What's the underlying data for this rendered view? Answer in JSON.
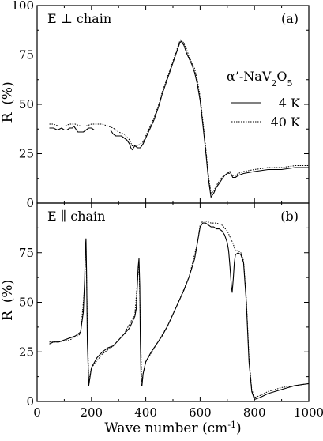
{
  "chart_data": [
    {
      "type": "line",
      "panel_label": "(a)",
      "annotation": "E ⊥ chain",
      "ylabel_prefix": "R",
      "ylabel_unit": "(%)",
      "ylim": [
        0,
        100
      ],
      "yticks": [
        0,
        25,
        50,
        75,
        100
      ],
      "xlim": [
        0,
        1000
      ],
      "legend": {
        "compound_prefix": "α’-NaV",
        "compound_sub1": "2",
        "compound_mid": "O",
        "compound_sub2": "5",
        "entries": [
          "4 K",
          "40 K"
        ],
        "placement": "right"
      },
      "series": [
        {
          "name": "4 K",
          "style": "solid",
          "x": [
            45,
            60,
            75,
            90,
            100,
            110,
            120,
            130,
            135,
            140,
            150,
            160,
            170,
            180,
            190,
            200,
            210,
            220,
            230,
            240,
            250,
            255,
            260,
            270,
            280,
            290,
            300,
            310,
            320,
            330,
            340,
            345,
            350,
            355,
            360,
            370,
            380,
            390,
            400,
            410,
            420,
            430,
            440,
            450,
            460,
            470,
            480,
            490,
            500,
            510,
            520,
            525,
            530,
            540,
            550,
            560,
            570,
            580,
            590,
            600,
            610,
            620,
            630,
            640,
            650,
            660,
            670,
            680,
            690,
            700,
            710,
            720,
            730,
            740,
            760,
            800,
            850,
            900,
            950,
            1000
          ],
          "y": [
            38,
            38,
            37,
            38,
            37,
            37,
            38,
            38,
            39,
            38,
            36,
            36,
            36,
            37,
            38,
            38,
            37,
            37,
            37,
            37,
            37,
            37,
            37,
            37,
            35,
            34,
            34,
            34,
            33,
            32,
            30,
            28,
            27,
            28,
            29,
            28,
            28,
            30,
            33,
            36,
            39,
            42,
            46,
            50,
            55,
            59,
            63,
            67,
            71,
            75,
            79,
            81,
            82,
            80,
            76,
            73,
            70,
            66,
            60,
            52,
            40,
            27,
            13,
            3,
            5,
            8,
            10,
            12,
            14,
            15,
            16,
            13,
            13,
            14,
            15,
            16,
            17,
            17,
            18,
            18
          ]
        },
        {
          "name": "40 K",
          "style": "dotted",
          "x": [
            45,
            60,
            80,
            100,
            120,
            140,
            160,
            180,
            200,
            220,
            240,
            260,
            280,
            300,
            320,
            340,
            350,
            360,
            370,
            380,
            390,
            400,
            410,
            420,
            430,
            440,
            450,
            460,
            470,
            480,
            490,
            500,
            510,
            520,
            525,
            530,
            540,
            550,
            560,
            570,
            580,
            590,
            600,
            610,
            620,
            630,
            640,
            650,
            660,
            670,
            680,
            690,
            700,
            710,
            720,
            730,
            740,
            760,
            800,
            850,
            900,
            950,
            1000
          ],
          "y": [
            40,
            40,
            39,
            39,
            40,
            40,
            39,
            39,
            40,
            40,
            40,
            39,
            38,
            36,
            35,
            32,
            29,
            29,
            29,
            30,
            31,
            34,
            37,
            40,
            43,
            47,
            51,
            56,
            60,
            64,
            68,
            72,
            76,
            80,
            82,
            83,
            81,
            78,
            74,
            71,
            68,
            62,
            54,
            42,
            29,
            15,
            5,
            6,
            9,
            11,
            13,
            14,
            15,
            15,
            14,
            14,
            15,
            16,
            17,
            18,
            18,
            19,
            19
          ]
        }
      ]
    },
    {
      "type": "line",
      "panel_label": "(b)",
      "annotation": "E ∥ chain",
      "ylabel_prefix": "R",
      "ylabel_unit": "(%)",
      "ylim": [
        0,
        100
      ],
      "yticks": [
        0,
        25,
        50,
        75
      ],
      "xlim": [
        0,
        1000
      ],
      "xticks": [
        0,
        200,
        400,
        600,
        800,
        1000
      ],
      "xlabel_prefix": "Wave number",
      "xlabel_unit_open": "(cm",
      "xlabel_unit_sup": "-1",
      "xlabel_unit_close": ")",
      "series": [
        {
          "name": "4 K",
          "style": "solid",
          "x": [
            45,
            60,
            80,
            100,
            120,
            140,
            150,
            160,
            170,
            175,
            178,
            180,
            182,
            185,
            190,
            200,
            220,
            240,
            260,
            280,
            300,
            320,
            340,
            350,
            360,
            365,
            368,
            372,
            375,
            378,
            380,
            383,
            386,
            390,
            400,
            420,
            440,
            460,
            480,
            500,
            520,
            540,
            560,
            580,
            590,
            600,
            610,
            620,
            630,
            640,
            650,
            660,
            670,
            680,
            690,
            700,
            705,
            710,
            715,
            718,
            722,
            726,
            730,
            740,
            750,
            760,
            770,
            780,
            790,
            800,
            820,
            850,
            900,
            950,
            1000
          ],
          "y": [
            29,
            30,
            30,
            31,
            32,
            33,
            34,
            35,
            45,
            62,
            78,
            82,
            66,
            30,
            8,
            17,
            22,
            25,
            27,
            28,
            31,
            34,
            37,
            40,
            43,
            47,
            56,
            68,
            72,
            58,
            30,
            8,
            8,
            14,
            20,
            25,
            29,
            33,
            38,
            44,
            50,
            56,
            63,
            72,
            80,
            88,
            90,
            90,
            89,
            88,
            88,
            87,
            87,
            86,
            84,
            80,
            76,
            68,
            58,
            55,
            62,
            70,
            74,
            75,
            74,
            70,
            50,
            20,
            5,
            1,
            2,
            4,
            6,
            8,
            9
          ]
        },
        {
          "name": "40 K",
          "style": "dotted",
          "x": [
            45,
            80,
            120,
            160,
            175,
            180,
            185,
            190,
            200,
            240,
            280,
            320,
            360,
            370,
            375,
            380,
            385,
            390,
            400,
            440,
            480,
            520,
            560,
            590,
            600,
            610,
            620,
            640,
            660,
            680,
            700,
            710,
            720,
            730,
            740,
            750,
            760,
            770,
            780,
            790,
            800,
            820,
            850,
            900,
            950,
            1000
          ],
          "y": [
            30,
            30,
            31,
            34,
            58,
            80,
            40,
            10,
            17,
            24,
            28,
            34,
            44,
            62,
            70,
            40,
            10,
            14,
            20,
            29,
            38,
            50,
            63,
            80,
            89,
            91,
            91,
            90,
            90,
            89,
            86,
            83,
            80,
            76,
            76,
            75,
            71,
            52,
            22,
            6,
            2,
            3,
            5,
            7,
            8,
            9
          ]
        }
      ]
    }
  ]
}
